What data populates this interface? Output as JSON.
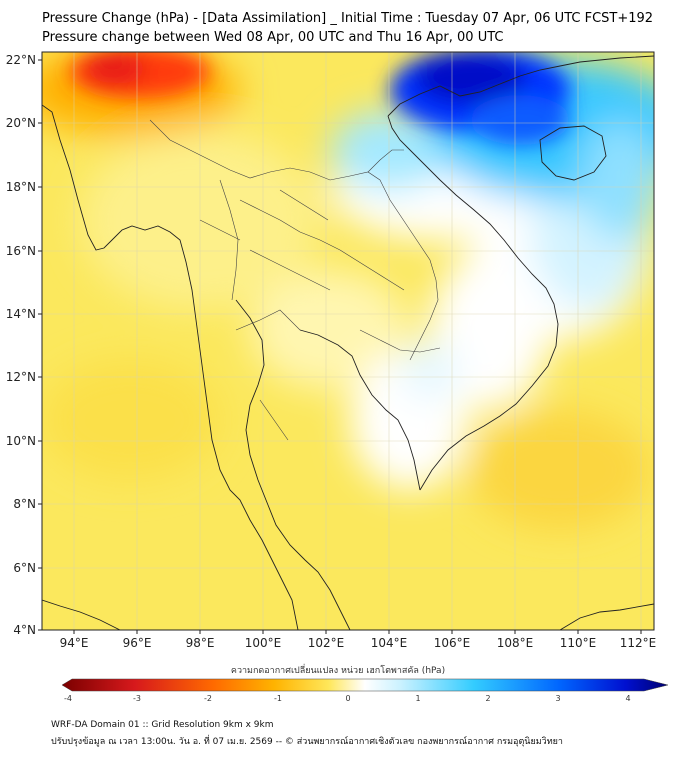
{
  "header": {
    "title": "Pressure Change (hPa) - [Data Assimilation] _ Initial Time : Tuesday 07 Apr, 06 UTC FCST+192",
    "subtitle": "Pressure change between Wed 08 Apr, 00 UTC and Thu 16 Apr, 00 UTC"
  },
  "map": {
    "lat_labels": [
      "22°N",
      "20°N",
      "18°N",
      "16°N",
      "14°N",
      "12°N",
      "10°N",
      "8°N",
      "6°N",
      "4°N"
    ],
    "lon_labels": [
      "94°E",
      "96°E",
      "98°E",
      "100°E",
      "102°E",
      "104°E",
      "106°E",
      "108°E",
      "110°E",
      "112°E"
    ],
    "lat_range": [
      4,
      22
    ],
    "lon_range": [
      93,
      112.5
    ]
  },
  "colorbar": {
    "title": "ความกดอากาศเปลี่ยนแปลง หน่วย เฮกโตพาสคัล (hPa)",
    "ticks": [
      "-4",
      "-3",
      "-2",
      "-1",
      "0",
      "1",
      "2",
      "3",
      "4"
    ],
    "range": [
      -4,
      4
    ],
    "colors": [
      "#7a0000",
      "#e31a1c",
      "#ff8c00",
      "#ffd700",
      "#fff176",
      "#ffffff",
      "#b3ecff",
      "#00bfff",
      "#0030ff",
      "#000080"
    ]
  },
  "footer": {
    "line1": "WRF-DA Domain 01 :: Grid Resolution 9km x 9km",
    "line2": "ปรับปรุงข้อมูล ณ เวลา 13:00น. วัน อ. ที่ 07 เม.ย. 2569 -- © ส่วนพยากรณ์อากาศเชิงตัวเลข กองพยากรณ์อากาศ กรมอุตุนิยมวิทยา"
  }
}
